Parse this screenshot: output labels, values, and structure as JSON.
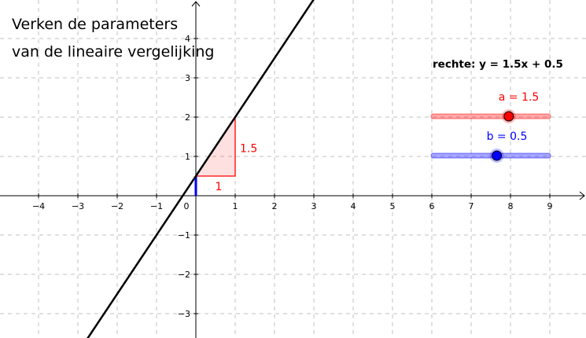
{
  "title": {
    "line1": "Verken de parameters",
    "line2": "van de lineaire vergelijking"
  },
  "equation": {
    "label": "rechte: y = 1.5x + 0.5",
    "slope": 1.5,
    "intercept": 0.5
  },
  "axes": {
    "x_ticks": [
      "−4",
      "−3",
      "−2",
      "−1",
      "0",
      "1",
      "2",
      "3",
      "4",
      "5",
      "6",
      "7",
      "8",
      "9"
    ],
    "y_ticks_pos": [
      "1",
      "2",
      "3",
      "4"
    ],
    "y_ticks_neg": [
      "−1",
      "−2",
      "−3"
    ]
  },
  "slope_triangle": {
    "run_label": "1",
    "rise_label": "1.5"
  },
  "sliders": {
    "a": {
      "label": "a = 1.5",
      "value": 1.5,
      "min": -5,
      "max": 5,
      "color": "#ff0000"
    },
    "b": {
      "label": "b = 0.5",
      "value": 0.5,
      "min": -5,
      "max": 5,
      "color": "#0000ff"
    }
  },
  "colors": {
    "line": "#000000",
    "grid": "#c0c0c0",
    "triangle": "#ff0000",
    "intercept": "#0000ff"
  }
}
